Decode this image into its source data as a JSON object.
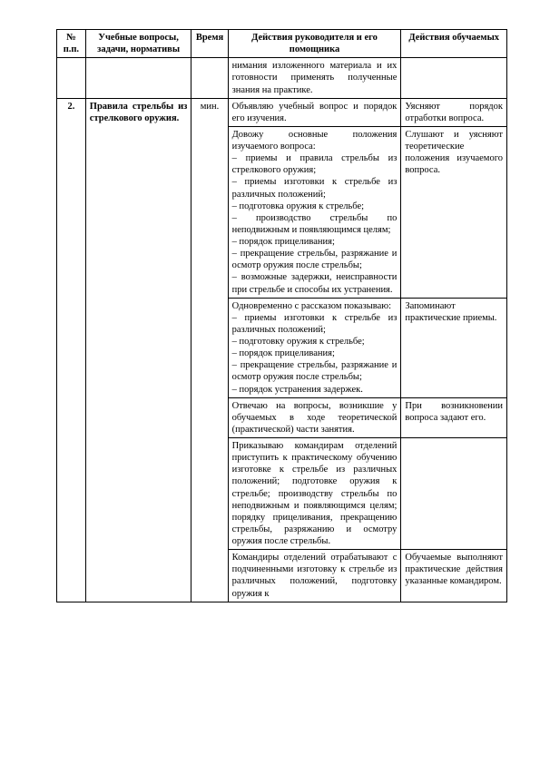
{
  "header": {
    "col1": "№ п.п.",
    "col2": "Учебные вопросы, задачи, нормативы",
    "col3": "Время",
    "col4": "Действия руководителя и его помощника",
    "col5": "Действия обучаемых"
  },
  "row_prev": {
    "col4": "нимания изложенного материала и их готовности применять полученные знания на практике."
  },
  "sec2": {
    "num": "2.",
    "task": "Правила стрельбы из стрелкового оружия.",
    "time": "мин.",
    "r0c4": "Объявляю учебный вопрос и порядок его изучения.",
    "r0c5": "Уясняют порядок отработки вопроса.",
    "r1c4": "Довожу основные положения изучаемого вопроса:\n– приемы и правила стрельбы из стрелкового оружия;\n– приемы изготовки к стрельбе из различных положений;\n– подготовка оружия к стрельбе;\n– производство стрельбы по неподвижным и появляющимся целям;\n– порядок прицеливания;\n– прекращение стрельбы, разряжание и осмотр оружия после стрельбы;\n– возможные задержки, неисправности при стрельбе и способы их устранения.",
    "r1c5": "Слушают и уясняют теоретические положения изучаемого вопроса.",
    "r2c4": "Одновременно с рассказом показываю:\n– приемы изготовки к стрельбе из различных положений;\n– подготовку оружия к стрельбе;\n– порядок прицеливания;\n– прекращение стрельбы, разряжание и осмотр оружия после стрельбы;\n– порядок устранения задержек.",
    "r2c5": "Запоминают практические приемы.",
    "r3c4": "Отвечаю на вопросы, возникшие у обучаемых в ходе теоретической (практической) части занятия.",
    "r3c5": "При возникновении вопроса задают его.",
    "r4c4": "Приказываю командирам отделений приступить к практическому обучению изготовке к стрельбе из различных положений; подготовке оружия к стрельбе; производству стрельбы по неподвижным и появляющимся целям; порядку прицеливания, прекращению стрельбы, разряжанию и осмотру оружия после стрельбы.",
    "r4c5": "",
    "r5c4": "Командиры отделений отрабатывают с подчиненными изготовку к стрельбе из различных положений, подготовку оружия к",
    "r5c5": "Обучаемые выполняют практические действия указанные командиром."
  }
}
